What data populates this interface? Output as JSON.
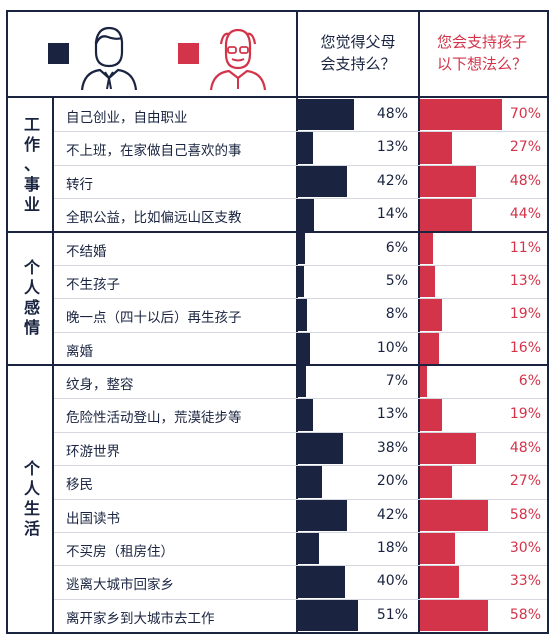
{
  "colors": {
    "parent": "#1a2440",
    "kid": "#d3344a"
  },
  "header": {
    "legend_parent_icon": "young-man-icon",
    "legend_kid_icon": "old-man-icon",
    "col_parent": [
      "您觉得父母",
      "会支持么？"
    ],
    "col_kid": [
      "您会支持孩子",
      "以下想法么？"
    ]
  },
  "chart_data": {
    "type": "bar",
    "ylim": [
      0,
      100
    ],
    "groups": [
      {
        "name": "工作、事业",
        "chars": [
          "工",
          "作",
          "、",
          "事",
          "业"
        ],
        "rows": [
          0,
          3
        ]
      },
      {
        "name": "个人感情",
        "chars": [
          "个",
          "人",
          "感",
          "情"
        ],
        "rows": [
          4,
          7
        ]
      },
      {
        "name": "个人生活",
        "chars": [
          "个",
          "人",
          "生",
          "活"
        ],
        "rows": [
          8,
          15
        ]
      }
    ],
    "categories": [
      "自己创业，自由职业",
      "不上班，在家做自己喜欢的事",
      "转行",
      "全职公益，比如偏远山区支教",
      "不结婚",
      "不生孩子",
      "晚一点（四十以后）再生孩子",
      "离婚",
      "纹身，整容",
      "危险性活动登山，荒漠徒步等",
      "环游世界",
      "移民",
      "出国读书",
      "不买房（租房住）",
      "逃离大城市回家乡",
      "离开家乡到大城市去工作"
    ],
    "series": [
      {
        "name": "您觉得父母会支持么？",
        "values": [
          48,
          13,
          42,
          14,
          6,
          5,
          8,
          10,
          7,
          13,
          38,
          20,
          42,
          18,
          40,
          51
        ],
        "labels": [
          "48%",
          "13%",
          "42%",
          "14%",
          "6%",
          "5%",
          "8%",
          "10%",
          "7%",
          "13%",
          "38%",
          "20%",
          "42%",
          "18%",
          "40%",
          "51%"
        ]
      },
      {
        "name": "您会支持孩子以下想法么？",
        "values": [
          70,
          27,
          48,
          44,
          11,
          13,
          19,
          16,
          6,
          19,
          48,
          27,
          58,
          30,
          33,
          58
        ],
        "labels": [
          "70%",
          "27%",
          "48%",
          "44%",
          "11%",
          "13%",
          "19%",
          "16%",
          "6%",
          "19%",
          "48%",
          "27%",
          "58%",
          "30%",
          "33%",
          "58%"
        ]
      }
    ]
  }
}
